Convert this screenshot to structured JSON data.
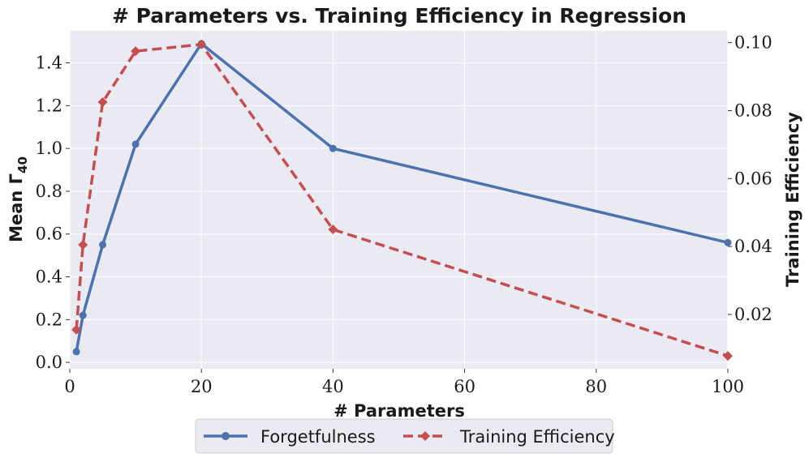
{
  "chart_data": {
    "type": "line",
    "title": "# Parameters vs. Training Efficiency in Regression",
    "xlabel": "# Parameters",
    "ylabel_left_main": "Mean Γ",
    "ylabel_left_sub": "40",
    "ylabel_right": "Training Efficiency",
    "xlim": [
      0,
      100
    ],
    "ylim_left": [
      -0.03,
      1.55
    ],
    "ylim_right": [
      0.004,
      0.1035
    ],
    "x_ticks": [
      0,
      20,
      40,
      60,
      80,
      100
    ],
    "x_tick_labels": [
      "0",
      "20",
      "40",
      "60",
      "80",
      "100"
    ],
    "y_left_ticks": [
      0.0,
      0.2,
      0.4,
      0.6,
      0.8,
      1.0,
      1.2,
      1.4
    ],
    "y_left_tick_labels": [
      "0.0",
      "0.2",
      "0.4",
      "0.6",
      "0.8",
      "1.0",
      "1.2",
      "1.4"
    ],
    "y_right_ticks": [
      0.02,
      0.04,
      0.06,
      0.08,
      0.1
    ],
    "y_right_tick_labels": [
      "0.02",
      "0.04",
      "0.06",
      "0.08",
      "0.10"
    ],
    "grid": true,
    "legend_position": "bottom-center",
    "series": [
      {
        "name": "Forgetfulness",
        "axis": "left",
        "color": "#4c72b0",
        "style": "solid",
        "marker": "circle",
        "x": [
          1,
          2,
          5,
          10,
          20,
          40,
          100
        ],
        "values": [
          0.05,
          0.22,
          0.55,
          1.02,
          1.49,
          1.0,
          0.56
        ]
      },
      {
        "name": "Training Efficiency",
        "axis": "right",
        "color": "#c44e52",
        "style": "dashed",
        "marker": "diamond",
        "x": [
          1,
          2,
          5,
          10,
          20,
          40,
          100
        ],
        "values": [
          0.0155,
          0.0405,
          0.0825,
          0.0975,
          0.0995,
          0.045,
          0.0078
        ]
      }
    ]
  }
}
